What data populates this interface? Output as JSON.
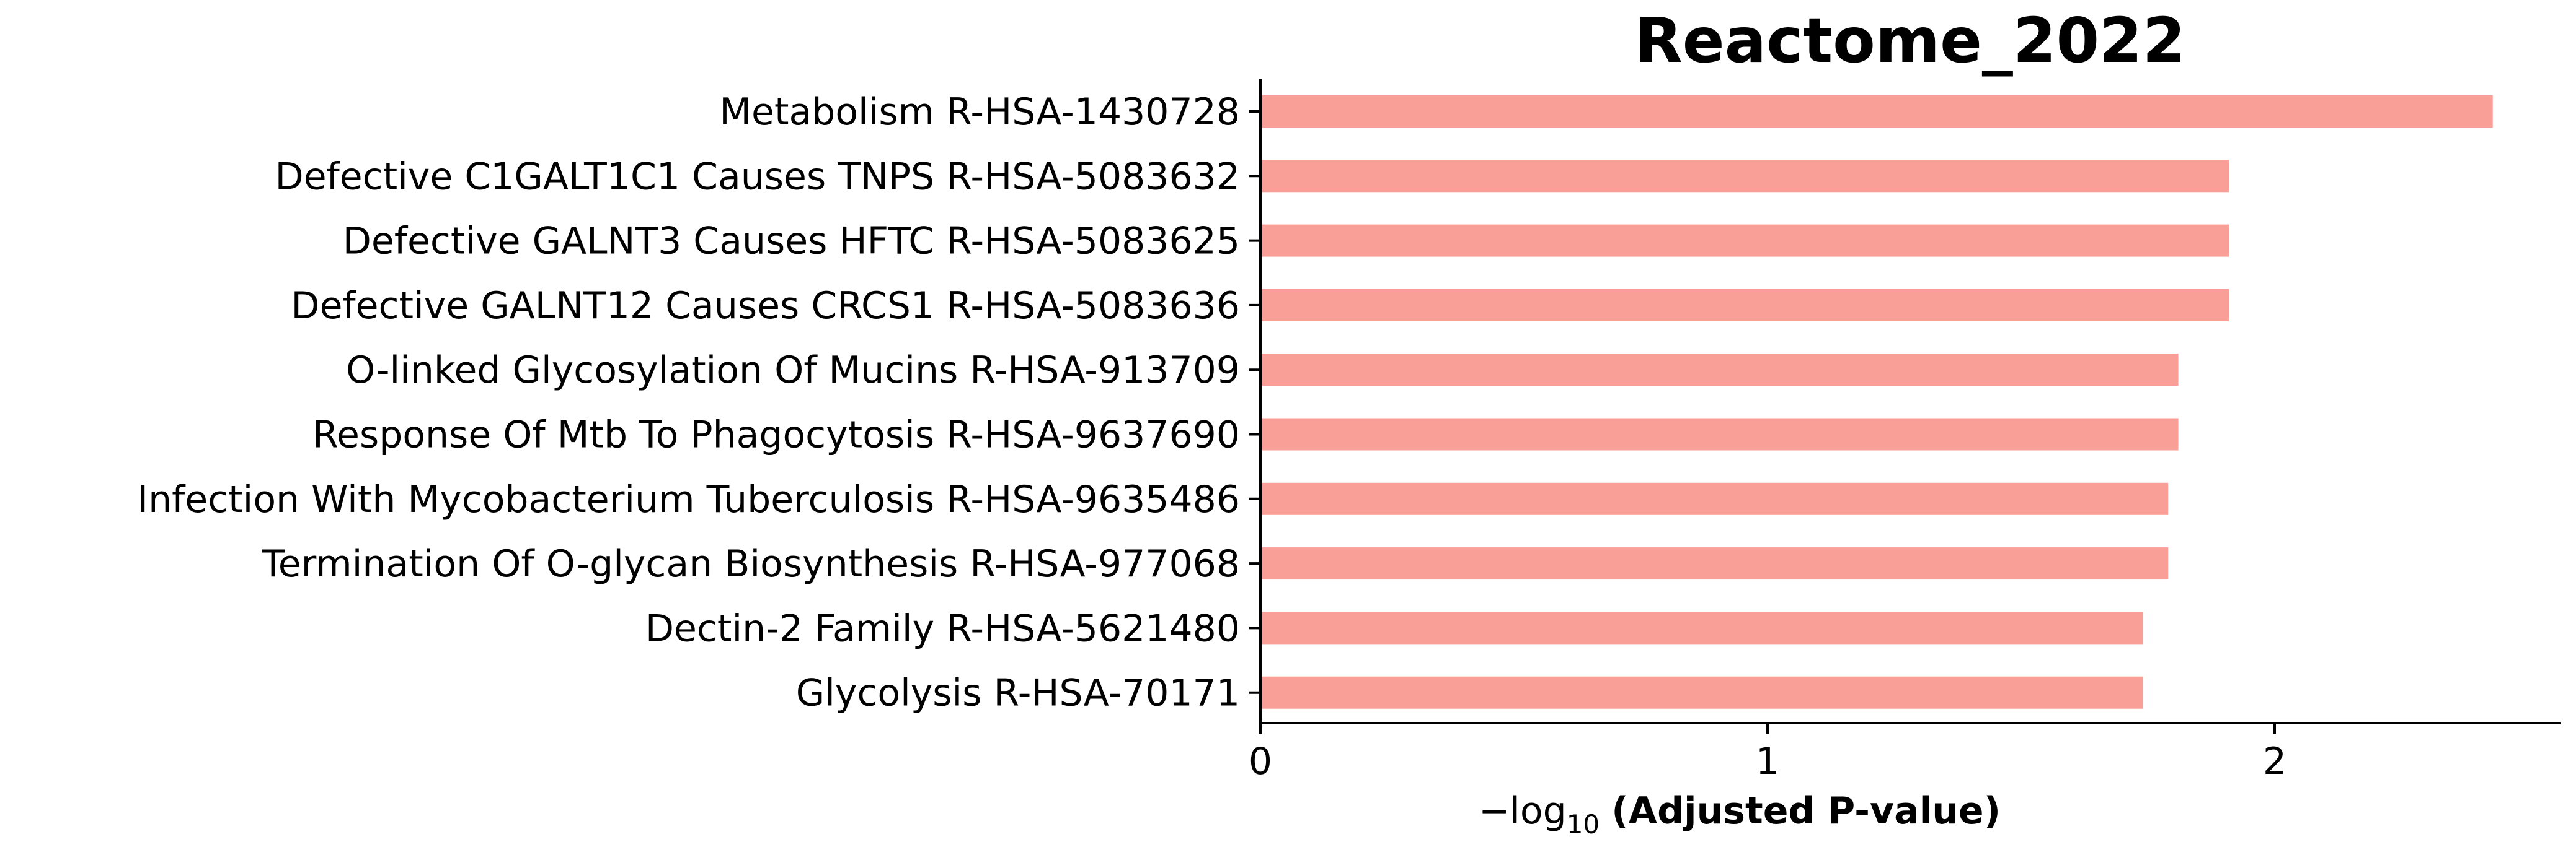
{
  "chart_data": {
    "type": "bar",
    "orientation": "horizontal",
    "title": "Reactome_2022",
    "xlabel_prefix": "−log",
    "xlabel_subscript": "10",
    "xlabel_bold": "(Adjusted P-value)",
    "ylabel": "",
    "xlim": [
      0,
      2.56
    ],
    "xticks": [
      0,
      1,
      2
    ],
    "xtick_labels": [
      "0",
      "1",
      "2"
    ],
    "grid": false,
    "bar_color": "#fa9f97",
    "categories": [
      "Metabolism R-HSA-1430728",
      "Defective C1GALT1C1 Causes TNPS R-HSA-5083632",
      "Defective GALNT3 Causes HFTC R-HSA-5083625",
      "Defective GALNT12 Causes CRCS1 R-HSA-5083636",
      "O-linked Glycosylation Of Mucins R-HSA-913709",
      "Response Of Mtb To Phagocytosis R-HSA-9637690",
      "Infection With Mycobacterium Tuberculosis R-HSA-9635486",
      "Termination Of O-glycan Biosynthesis R-HSA-977068",
      "Dectin-2 Family R-HSA-5621480",
      "Glycolysis R-HSA-70171"
    ],
    "values": [
      2.43,
      1.91,
      1.91,
      1.91,
      1.81,
      1.81,
      1.79,
      1.79,
      1.74,
      1.74
    ]
  }
}
